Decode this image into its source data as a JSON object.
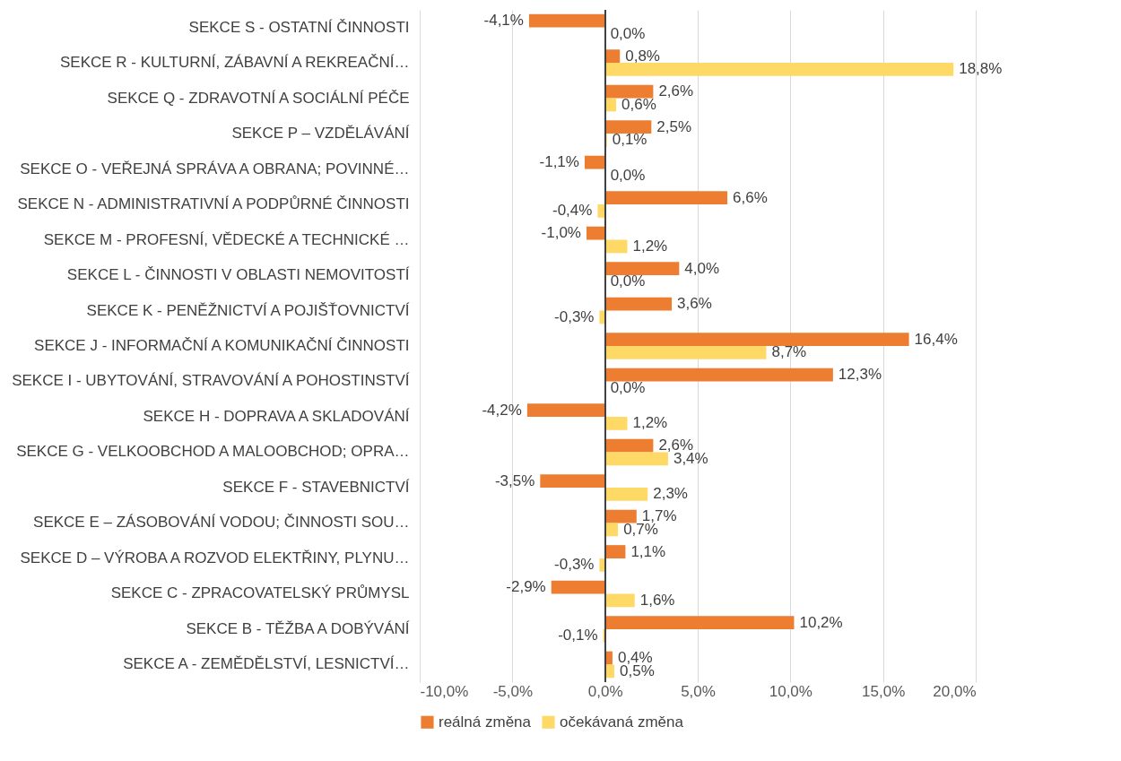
{
  "chart_data": {
    "type": "bar",
    "orientation": "horizontal",
    "categories": [
      "SEKCE S - OSTATNÍ ČINNOSTI",
      "SEKCE R - KULTURNÍ, ZÁBAVNÍ A REKREAČNÍ…",
      "SEKCE Q - ZDRAVOTNÍ A SOCIÁLNÍ PÉČE",
      "SEKCE P – VZDĚLÁVÁNÍ",
      "SEKCE O - VEŘEJNÁ SPRÁVA A OBRANA; POVINNÉ…",
      "SEKCE N - ADMINISTRATIVNÍ A PODPŮRNÉ ČINNOSTI",
      "SEKCE M - PROFESNÍ, VĚDECKÉ A TECHNICKÉ …",
      "SEKCE L - ČINNOSTI V OBLASTI NEMOVITOSTÍ",
      "SEKCE K - PENĚŽNICTVÍ A POJIŠŤOVNICTVÍ",
      "SEKCE J - INFORMAČNÍ A KOMUNIKAČNÍ ČINNOSTI",
      "SEKCE I - UBYTOVÁNÍ, STRAVOVÁNÍ A POHOSTINSTVÍ",
      "SEKCE H - DOPRAVA A SKLADOVÁNÍ",
      "SEKCE G - VELKOOBCHOD A MALOOBCHOD; OPRA…",
      "SEKCE F - STAVEBNICTVÍ",
      "SEKCE E – ZÁSOBOVÁNÍ VODOU; ČINNOSTI SOU…",
      "SEKCE D – VÝROBA A ROZVOD ELEKTŘINY, PLYNU…",
      "SEKCE C - ZPRACOVATELSKÝ PRŮMYSL",
      "SEKCE B - TĚŽBA A DOBÝVÁNÍ",
      "SEKCE A - ZEMĚDĚLSTVÍ, LESNICTVÍ…"
    ],
    "series": [
      {
        "name": "reálná změna",
        "color": "#ed7d31",
        "values": [
          -4.1,
          0.8,
          2.6,
          2.5,
          -1.1,
          6.6,
          -1.0,
          4.0,
          3.6,
          16.4,
          12.3,
          -4.2,
          2.6,
          -3.5,
          1.7,
          1.1,
          -2.9,
          10.2,
          0.4
        ],
        "value_labels": [
          "-4,1%",
          "0,8%",
          "2,6%",
          "2,5%",
          "-1,1%",
          "6,6%",
          "-1,0%",
          "4,0%",
          "3,6%",
          "16,4%",
          "12,3%",
          "-4,2%",
          "2,6%",
          "-3,5%",
          "1,7%",
          "1,1%",
          "-2,9%",
          "10,2%",
          "0,4%"
        ]
      },
      {
        "name": "očekávaná změna",
        "color": "#ffd966",
        "values": [
          0.0,
          18.8,
          0.6,
          0.1,
          0.0,
          -0.4,
          1.2,
          0.0,
          -0.3,
          8.7,
          0.0,
          1.2,
          3.4,
          2.3,
          0.7,
          -0.3,
          1.6,
          -0.1,
          0.5
        ],
        "value_labels": [
          "0,0%",
          "18,8%",
          "0,6%",
          "0,1%",
          "0,0%",
          "-0,4%",
          "1,2%",
          "0,0%",
          "-0,3%",
          "8,7%",
          "0,0%",
          "1,2%",
          "3,4%",
          "2,3%",
          "0,7%",
          "-0,3%",
          "1,6%",
          "-0,1%",
          "0,5%"
        ]
      }
    ],
    "xlim": [
      -10,
      20
    ],
    "xticks": [
      {
        "value": -10,
        "label": "-10,0%"
      },
      {
        "value": -5,
        "label": "-5,0%"
      },
      {
        "value": 0,
        "label": "0,0%"
      },
      {
        "value": 5,
        "label": "5,0%"
      },
      {
        "value": 10,
        "label": "10,0%"
      },
      {
        "value": 15,
        "label": "15,0%"
      },
      {
        "value": 20,
        "label": "20,0%"
      }
    ],
    "grid": "x",
    "legend": "bottom"
  }
}
